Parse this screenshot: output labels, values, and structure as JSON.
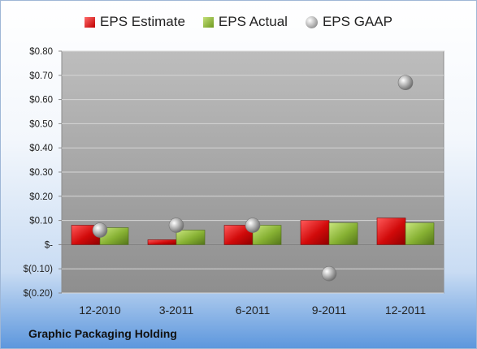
{
  "footer": {
    "company": "Graphic Packaging Holding"
  },
  "legend": [
    {
      "label": "EPS Estimate",
      "icon": "red-square-icon"
    },
    {
      "label": "EPS Actual",
      "icon": "green-square-icon"
    },
    {
      "label": "EPS GAAP",
      "icon": "gray-sphere-icon"
    }
  ],
  "colors": {
    "estimate": "#c00000",
    "actual": "#7aa32a",
    "gaap": "#9a9a9a",
    "plot_bg": "#a9a9a9"
  },
  "chart_data": {
    "type": "bar",
    "categories": [
      "12-2010",
      "3-2011",
      "6-2011",
      "9-2011",
      "12-2011"
    ],
    "series": [
      {
        "name": "EPS Estimate",
        "type": "bar",
        "values": [
          0.08,
          0.02,
          0.08,
          0.1,
          0.11
        ]
      },
      {
        "name": "EPS Actual",
        "type": "bar",
        "values": [
          0.07,
          0.06,
          0.08,
          0.09,
          0.09
        ]
      },
      {
        "name": "EPS GAAP",
        "type": "scatter",
        "values": [
          0.06,
          0.08,
          0.08,
          -0.12,
          0.67
        ]
      }
    ],
    "ylim": [
      -0.2,
      0.8
    ],
    "yticks": [
      0.8,
      0.7,
      0.6,
      0.5,
      0.4,
      0.3,
      0.2,
      0.1,
      0,
      -0.1,
      -0.2
    ],
    "ytick_labels": [
      "$0.80",
      "$0.70",
      "$0.60",
      "$0.50",
      "$0.40",
      "$0.30",
      "$0.20",
      "$0.10",
      "$-",
      "$(0.10)",
      "$(0.20)"
    ],
    "grid": true,
    "legend_position": "top"
  }
}
